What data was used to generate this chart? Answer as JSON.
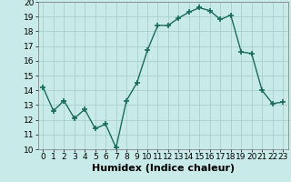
{
  "x": [
    0,
    1,
    2,
    3,
    4,
    5,
    6,
    7,
    8,
    9,
    10,
    11,
    12,
    13,
    14,
    15,
    16,
    17,
    18,
    19,
    20,
    21,
    22,
    23
  ],
  "y": [
    14.2,
    12.6,
    13.3,
    12.1,
    12.7,
    11.4,
    11.7,
    10.1,
    13.3,
    14.5,
    16.7,
    18.4,
    18.4,
    18.9,
    19.3,
    19.6,
    19.4,
    18.8,
    19.1,
    16.6,
    16.5,
    14.0,
    13.1,
    13.2
  ],
  "color": "#1a6b5a",
  "bg_color": "#c8eae8",
  "grid_color": "#a8d0cc",
  "xlabel": "Humidex (Indice chaleur)",
  "ylim": [
    10,
    20
  ],
  "xlim_min": -0.5,
  "xlim_max": 23.5,
  "yticks": [
    10,
    11,
    12,
    13,
    14,
    15,
    16,
    17,
    18,
    19,
    20
  ],
  "xticks": [
    0,
    1,
    2,
    3,
    4,
    5,
    6,
    7,
    8,
    9,
    10,
    11,
    12,
    13,
    14,
    15,
    16,
    17,
    18,
    19,
    20,
    21,
    22,
    23
  ],
  "marker": "+",
  "markersize": 4,
  "linewidth": 1.0,
  "xlabel_fontsize": 8,
  "tick_fontsize": 6.5
}
